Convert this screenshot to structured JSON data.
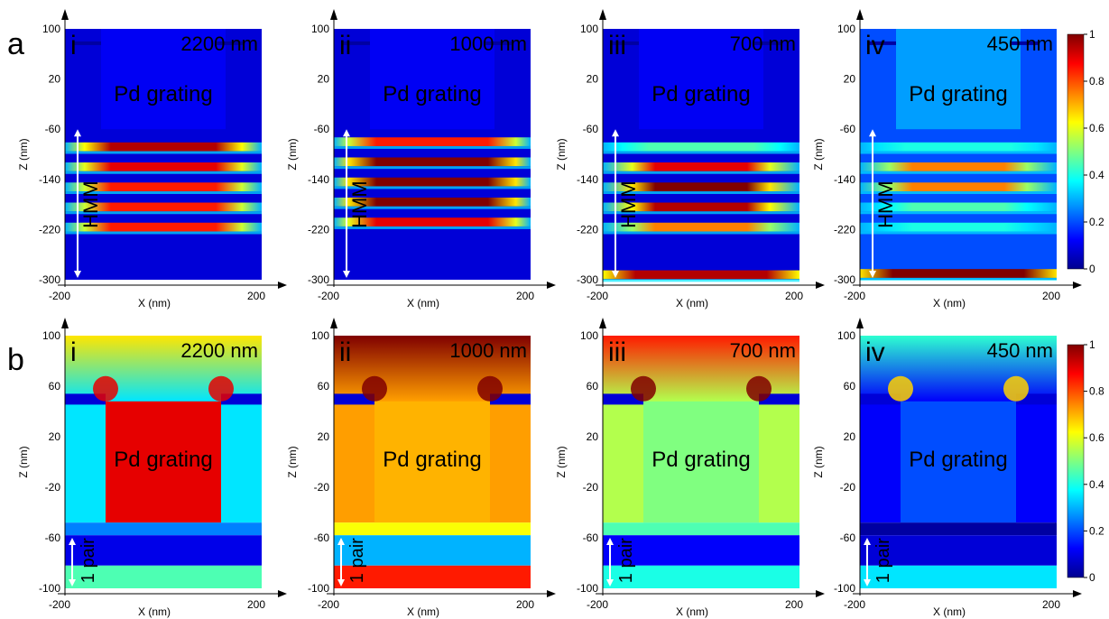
{
  "figure": {
    "row_labels": [
      "a",
      "b"
    ]
  },
  "colorbar": {
    "ticks": [
      "1",
      "0.8",
      "0.6",
      "0.4",
      "0.2",
      "0"
    ],
    "values": [
      1,
      0.8,
      0.6,
      0.4,
      0.2,
      0
    ],
    "colormap": [
      "#00008f",
      "#0000ff",
      "#0080ff",
      "#00ffff",
      "#80ff80",
      "#ffff00",
      "#ff8000",
      "#ff0000",
      "#800000"
    ]
  },
  "chart_data": [
    {
      "type": "heatmap",
      "row": "a",
      "panel": "i",
      "wavelength": "2200 nm",
      "annotation": "Pd grating",
      "region_label": "HMM",
      "xlabel": "X (nm)",
      "ylabel": "Z (nm)",
      "xlim": [
        -200,
        200
      ],
      "ylim": [
        -300,
        100
      ],
      "xticks": [
        "-200",
        "200"
      ],
      "yticks": [
        "100",
        "20",
        "-60",
        "-140",
        "-220",
        "-300"
      ],
      "layers": [
        {
          "z": -88,
          "peak": 0.95,
          "width": 0.8
        },
        {
          "z": -120,
          "peak": 0.9,
          "width": 0.8
        },
        {
          "z": -152,
          "peak": 0.85,
          "width": 0.8
        },
        {
          "z": -184,
          "peak": 0.85,
          "width": 0.8
        },
        {
          "z": -216,
          "peak": 0.85,
          "width": 0.8
        }
      ]
    },
    {
      "type": "heatmap",
      "row": "a",
      "panel": "ii",
      "wavelength": "1000 nm",
      "annotation": "Pd grating",
      "region_label": "HMM",
      "xlabel": "X (nm)",
      "ylabel": "Z (nm)",
      "xlim": [
        -200,
        200
      ],
      "ylim": [
        -300,
        100
      ],
      "xticks": [
        "-200",
        "200"
      ],
      "yticks": [
        "100",
        "20",
        "-60",
        "-140",
        "-220",
        "-300"
      ],
      "layers": [
        {
          "z": -80,
          "peak": 0.85,
          "width": 0.85
        },
        {
          "z": -112,
          "peak": 1.0,
          "width": 0.85
        },
        {
          "z": -144,
          "peak": 1.0,
          "width": 0.85
        },
        {
          "z": -176,
          "peak": 1.0,
          "width": 0.85
        },
        {
          "z": -208,
          "peak": 0.9,
          "width": 0.85
        }
      ]
    },
    {
      "type": "heatmap",
      "row": "a",
      "panel": "iii",
      "wavelength": "700 nm",
      "annotation": "Pd grating",
      "region_label": "HMM",
      "xlabel": "X (nm)",
      "ylabel": "Z (nm)",
      "xlim": [
        -200,
        200
      ],
      "ylim": [
        -300,
        100
      ],
      "xticks": [
        "-200",
        "200"
      ],
      "yticks": [
        "100",
        "20",
        "-60",
        "-140",
        "-220",
        "-300"
      ],
      "layers": [
        {
          "z": -88,
          "peak": 0.45,
          "width": 0.8
        },
        {
          "z": -120,
          "peak": 0.9,
          "width": 0.7
        },
        {
          "z": -152,
          "peak": 1.0,
          "width": 0.7
        },
        {
          "z": -184,
          "peak": 0.95,
          "width": 0.7
        },
        {
          "z": -216,
          "peak": 0.75,
          "width": 0.7
        },
        {
          "z": -292,
          "peak": 0.95,
          "width": 1.0
        }
      ]
    },
    {
      "type": "heatmap",
      "row": "a",
      "panel": "iv",
      "wavelength": "450 nm",
      "annotation": "Pd grating",
      "region_label": "HMM",
      "xlabel": "X (nm)",
      "ylabel": "Z (nm)",
      "xlim": [
        -200,
        200
      ],
      "ylim": [
        -300,
        100
      ],
      "xticks": [
        "-200",
        "200"
      ],
      "yticks": [
        "100",
        "20",
        "-60",
        "-140",
        "-220",
        "-300"
      ],
      "layers": [
        {
          "z": -88,
          "peak": 0.4,
          "width": 0.8
        },
        {
          "z": -120,
          "peak": 0.75,
          "width": 0.7
        },
        {
          "z": -152,
          "peak": 0.75,
          "width": 0.7
        },
        {
          "z": -184,
          "peak": 0.45,
          "width": 0.7
        },
        {
          "z": -216,
          "peak": 0.4,
          "width": 0.7
        },
        {
          "z": -290,
          "peak": 1.0,
          "width": 1.0
        }
      ]
    },
    {
      "type": "heatmap",
      "row": "b",
      "panel": "i",
      "wavelength": "2200 nm",
      "annotation": "Pd grating",
      "region_label": "1 pair",
      "xlabel": "X (nm)",
      "ylabel": "Z (nm)",
      "xlim": [
        -200,
        200
      ],
      "ylim": [
        -100,
        100
      ],
      "xticks": [
        "-200",
        "200"
      ],
      "yticks": [
        "100",
        "60",
        "20",
        "-20",
        "-60",
        "-100"
      ],
      "level": {
        "bg": 0.35,
        "grating": 0.9,
        "below": 0.1,
        "bottom": 0.45
      }
    },
    {
      "type": "heatmap",
      "row": "b",
      "panel": "ii",
      "wavelength": "1000 nm",
      "annotation": "Pd grating",
      "region_label": "1 pair",
      "xlabel": "X (nm)",
      "ylabel": "Z (nm)",
      "xlim": [
        -200,
        200
      ],
      "ylim": [
        -100,
        100
      ],
      "xticks": [
        "-200",
        "200"
      ],
      "yticks": [
        "100",
        "60",
        "20",
        "-20",
        "-60",
        "-100"
      ],
      "level": {
        "bg": 0.72,
        "grating": 0.7,
        "below": 0.3,
        "bottom": 0.85
      }
    },
    {
      "type": "heatmap",
      "row": "b",
      "panel": "iii",
      "wavelength": "700 nm",
      "annotation": "Pd grating",
      "region_label": "1 pair",
      "xlabel": "X (nm)",
      "ylabel": "Z (nm)",
      "xlim": [
        -200,
        200
      ],
      "ylim": [
        -100,
        100
      ],
      "xticks": [
        "-200",
        "200"
      ],
      "yticks": [
        "100",
        "60",
        "20",
        "-20",
        "-60",
        "-100"
      ],
      "level": {
        "bg": 0.55,
        "grating": 0.5,
        "below": 0.12,
        "bottom": 0.4
      }
    },
    {
      "type": "heatmap",
      "row": "b",
      "panel": "iv",
      "wavelength": "450 nm",
      "annotation": "Pd grating",
      "region_label": "1 pair",
      "xlabel": "X (nm)",
      "ylabel": "Z (nm)",
      "xlim": [
        -200,
        200
      ],
      "ylim": [
        -100,
        100
      ],
      "xticks": [
        "-200",
        "200"
      ],
      "yticks": [
        "100",
        "60",
        "20",
        "-20",
        "-60",
        "-100"
      ],
      "level": {
        "bg": 0.12,
        "grating": 0.2,
        "below": 0.08,
        "bottom": 0.35
      }
    }
  ]
}
